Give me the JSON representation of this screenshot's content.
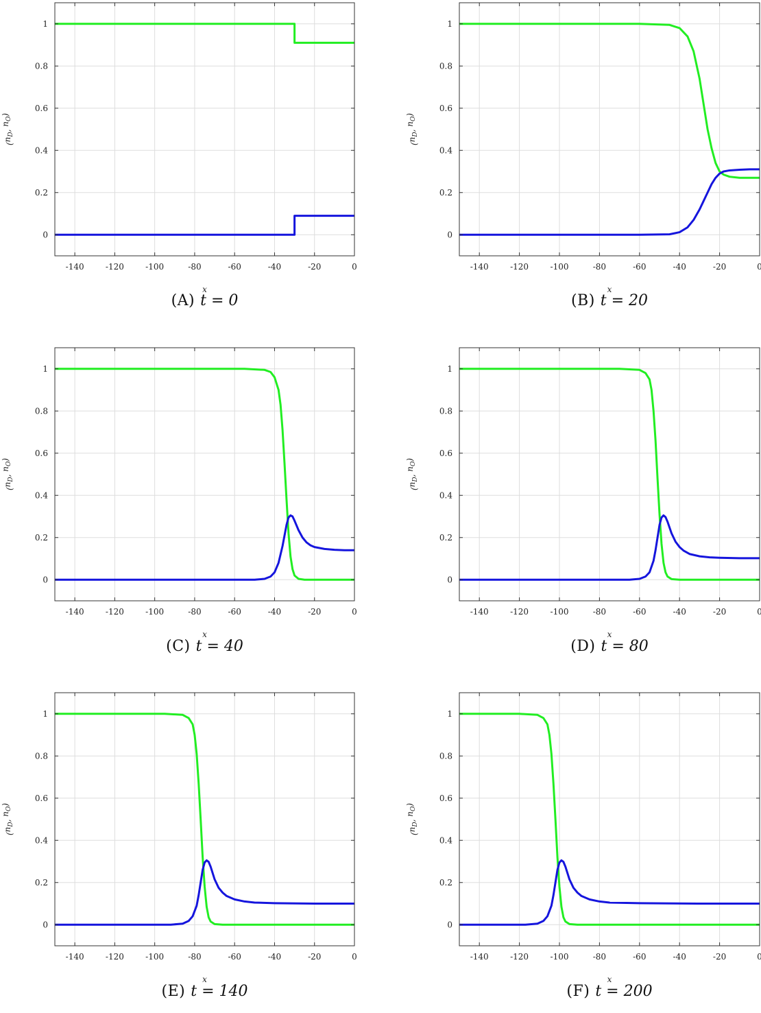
{
  "figure": {
    "panels": [
      {
        "letter": "(A)",
        "t_label": "t = 0"
      },
      {
        "letter": "(B)",
        "t_label": "t = 20"
      },
      {
        "letter": "(C)",
        "t_label": "t = 40"
      },
      {
        "letter": "(D)",
        "t_label": "t = 80"
      },
      {
        "letter": "(E)",
        "t_label": "t = 140"
      },
      {
        "letter": "(F)",
        "t_label": "t = 200"
      }
    ]
  },
  "chart_data": [
    {
      "type": "line",
      "panel": "A",
      "title": "(A) t = 0",
      "xlabel": "x",
      "ylabel": "(n_D, n_O)",
      "xlim": [
        -150,
        0
      ],
      "ylim": [
        -0.1,
        1.1
      ],
      "xticks": [
        -140,
        -120,
        -100,
        -80,
        -60,
        -40,
        -20,
        0
      ],
      "yticks": [
        0,
        0.2,
        0.4,
        0.6,
        0.8,
        1
      ],
      "grid": true,
      "series": [
        {
          "color": "#22ee22",
          "x": [
            -150,
            -30,
            -30,
            0
          ],
          "y": [
            1.0,
            1.0,
            0.91,
            0.91
          ]
        },
        {
          "color": "#1515dd",
          "x": [
            -150,
            -30,
            -30,
            0
          ],
          "y": [
            0.0,
            0.0,
            0.09,
            0.09
          ]
        }
      ]
    },
    {
      "type": "line",
      "panel": "B",
      "title": "(B) t = 20",
      "xlabel": "x",
      "ylabel": "(n_D, n_O)",
      "xlim": [
        -150,
        0
      ],
      "ylim": [
        -0.1,
        1.1
      ],
      "xticks": [
        -140,
        -120,
        -100,
        -80,
        -60,
        -40,
        -20,
        0
      ],
      "yticks": [
        0,
        0.2,
        0.4,
        0.6,
        0.8,
        1
      ],
      "grid": true,
      "series": [
        {
          "color": "#22ee22",
          "x": [
            -150,
            -60,
            -45,
            -40,
            -36,
            -33,
            -30,
            -28,
            -26,
            -24,
            -22,
            -20,
            -18,
            -15,
            -10,
            -5,
            0
          ],
          "y": [
            1.0,
            1.0,
            0.995,
            0.98,
            0.94,
            0.87,
            0.74,
            0.62,
            0.5,
            0.41,
            0.34,
            0.3,
            0.285,
            0.275,
            0.27,
            0.27,
            0.27
          ]
        },
        {
          "color": "#1515dd",
          "x": [
            -150,
            -60,
            -45,
            -40,
            -36,
            -33,
            -30,
            -28,
            -26,
            -24,
            -22,
            -20,
            -18,
            -15,
            -10,
            -5,
            0
          ],
          "y": [
            0.0,
            0.0,
            0.002,
            0.012,
            0.035,
            0.07,
            0.12,
            0.16,
            0.2,
            0.24,
            0.27,
            0.29,
            0.3,
            0.305,
            0.308,
            0.31,
            0.31
          ]
        }
      ]
    },
    {
      "type": "line",
      "panel": "C",
      "title": "(C) t = 40",
      "xlabel": "x",
      "ylabel": "(n_D, n_O)",
      "xlim": [
        -150,
        0
      ],
      "ylim": [
        -0.1,
        1.1
      ],
      "xticks": [
        -140,
        -120,
        -100,
        -80,
        -60,
        -40,
        -20,
        0
      ],
      "yticks": [
        0,
        0.2,
        0.4,
        0.6,
        0.8,
        1
      ],
      "grid": true,
      "series": [
        {
          "color": "#22ee22",
          "x": [
            -150,
            -55,
            -45,
            -42,
            -40,
            -38,
            -37,
            -36,
            -35,
            -34,
            -33,
            -32,
            -31,
            -30,
            -28,
            -25,
            0
          ],
          "y": [
            1.0,
            1.0,
            0.995,
            0.985,
            0.96,
            0.9,
            0.83,
            0.71,
            0.55,
            0.38,
            0.22,
            0.11,
            0.05,
            0.02,
            0.004,
            0.0,
            0.0
          ]
        },
        {
          "color": "#1515dd",
          "x": [
            -150,
            -50,
            -45,
            -42,
            -40,
            -38,
            -36,
            -35,
            -34,
            -33,
            -32,
            -31,
            -30,
            -28,
            -26,
            -24,
            -22,
            -20,
            -15,
            -10,
            -5,
            0
          ],
          "y": [
            0.0,
            0.0,
            0.004,
            0.015,
            0.035,
            0.08,
            0.16,
            0.21,
            0.26,
            0.295,
            0.305,
            0.3,
            0.28,
            0.235,
            0.2,
            0.177,
            0.163,
            0.155,
            0.146,
            0.142,
            0.14,
            0.14
          ]
        }
      ]
    },
    {
      "type": "line",
      "panel": "D",
      "title": "(D) t = 80",
      "xlabel": "x",
      "ylabel": "(n_D, n_O)",
      "xlim": [
        -150,
        0
      ],
      "ylim": [
        -0.1,
        1.1
      ],
      "xticks": [
        -140,
        -120,
        -100,
        -80,
        -60,
        -40,
        -20,
        0
      ],
      "yticks": [
        0,
        0.2,
        0.4,
        0.6,
        0.8,
        1
      ],
      "grid": true,
      "series": [
        {
          "color": "#22ee22",
          "x": [
            -150,
            -70,
            -60,
            -57,
            -55,
            -54,
            -53,
            -52,
            -51,
            -50,
            -49,
            -48,
            -47,
            -46,
            -44,
            -40,
            0
          ],
          "y": [
            1.0,
            1.0,
            0.995,
            0.98,
            0.95,
            0.9,
            0.8,
            0.66,
            0.48,
            0.31,
            0.17,
            0.08,
            0.035,
            0.015,
            0.003,
            0.0,
            0.0
          ]
        },
        {
          "color": "#1515dd",
          "x": [
            -150,
            -65,
            -60,
            -57,
            -55,
            -53,
            -52,
            -51,
            -50,
            -49,
            -48,
            -47,
            -46,
            -44,
            -42,
            -40,
            -38,
            -35,
            -30,
            -25,
            -20,
            -10,
            0
          ],
          "y": [
            0.0,
            0.0,
            0.004,
            0.015,
            0.035,
            0.09,
            0.14,
            0.2,
            0.26,
            0.295,
            0.305,
            0.297,
            0.275,
            0.22,
            0.18,
            0.155,
            0.138,
            0.122,
            0.111,
            0.106,
            0.104,
            0.102,
            0.102
          ]
        }
      ]
    },
    {
      "type": "line",
      "panel": "E",
      "title": "(E) t = 140",
      "xlabel": "x",
      "ylabel": "(n_D, n_O)",
      "xlim": [
        -150,
        0
      ],
      "ylim": [
        -0.1,
        1.1
      ],
      "xticks": [
        -140,
        -120,
        -100,
        -80,
        -60,
        -40,
        -20,
        0
      ],
      "yticks": [
        0,
        0.2,
        0.4,
        0.6,
        0.8,
        1
      ],
      "grid": true,
      "series": [
        {
          "color": "#22ee22",
          "x": [
            -150,
            -95,
            -86,
            -83,
            -81,
            -80,
            -79,
            -78,
            -77,
            -76,
            -75,
            -74,
            -73,
            -72,
            -70,
            -66,
            0
          ],
          "y": [
            1.0,
            1.0,
            0.995,
            0.98,
            0.95,
            0.9,
            0.81,
            0.67,
            0.5,
            0.32,
            0.18,
            0.085,
            0.035,
            0.015,
            0.003,
            0.0,
            0.0
          ]
        },
        {
          "color": "#1515dd",
          "x": [
            -150,
            -92,
            -86,
            -83,
            -81,
            -79,
            -78,
            -77,
            -76,
            -75,
            -74,
            -73,
            -72,
            -70,
            -68,
            -66,
            -64,
            -60,
            -55,
            -50,
            -40,
            -20,
            0
          ],
          "y": [
            0.0,
            0.0,
            0.005,
            0.018,
            0.04,
            0.09,
            0.14,
            0.2,
            0.26,
            0.295,
            0.305,
            0.298,
            0.275,
            0.215,
            0.175,
            0.152,
            0.136,
            0.12,
            0.11,
            0.105,
            0.102,
            0.1,
            0.1
          ]
        }
      ]
    },
    {
      "type": "line",
      "panel": "F",
      "title": "(F) t = 200",
      "xlabel": "x",
      "ylabel": "(n_D, n_O)",
      "xlim": [
        -150,
        0
      ],
      "ylim": [
        -0.1,
        1.1
      ],
      "xticks": [
        -140,
        -120,
        -100,
        -80,
        -60,
        -40,
        -20,
        0
      ],
      "yticks": [
        0,
        0.2,
        0.4,
        0.6,
        0.8,
        1
      ],
      "grid": true,
      "series": [
        {
          "color": "#22ee22",
          "x": [
            -150,
            -120,
            -111,
            -108,
            -106,
            -105,
            -104,
            -103,
            -102,
            -101,
            -100,
            -99,
            -98,
            -97,
            -95,
            -91,
            0
          ],
          "y": [
            1.0,
            1.0,
            0.995,
            0.98,
            0.95,
            0.9,
            0.81,
            0.67,
            0.5,
            0.32,
            0.18,
            0.085,
            0.035,
            0.015,
            0.003,
            0.0,
            0.0
          ]
        },
        {
          "color": "#1515dd",
          "x": [
            -150,
            -117,
            -111,
            -108,
            -106,
            -104,
            -103,
            -102,
            -101,
            -100,
            -99,
            -98,
            -97,
            -95,
            -93,
            -91,
            -89,
            -85,
            -80,
            -75,
            -60,
            -30,
            0
          ],
          "y": [
            0.0,
            0.0,
            0.005,
            0.018,
            0.04,
            0.09,
            0.14,
            0.2,
            0.26,
            0.295,
            0.305,
            0.298,
            0.275,
            0.215,
            0.175,
            0.152,
            0.136,
            0.12,
            0.11,
            0.105,
            0.102,
            0.1,
            0.1
          ]
        }
      ]
    }
  ]
}
